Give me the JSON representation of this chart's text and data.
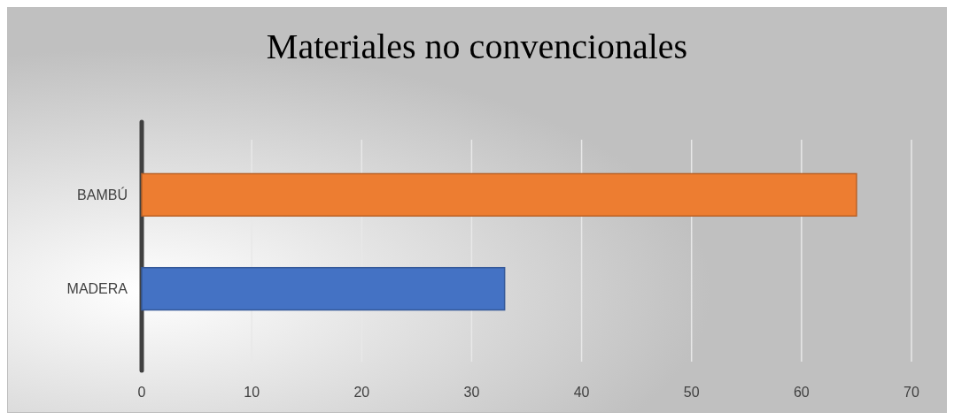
{
  "chart_data": {
    "type": "bar",
    "orientation": "horizontal",
    "title": "Materiales no convencionales",
    "categories": [
      "BAMBÚ",
      "MADERA"
    ],
    "values": [
      65,
      33
    ],
    "colors": [
      "#ed7d31",
      "#4472c4"
    ],
    "xlim": [
      0,
      70
    ],
    "xticks": [
      0,
      10,
      20,
      30,
      40,
      50,
      60,
      70
    ],
    "grid": "x"
  }
}
